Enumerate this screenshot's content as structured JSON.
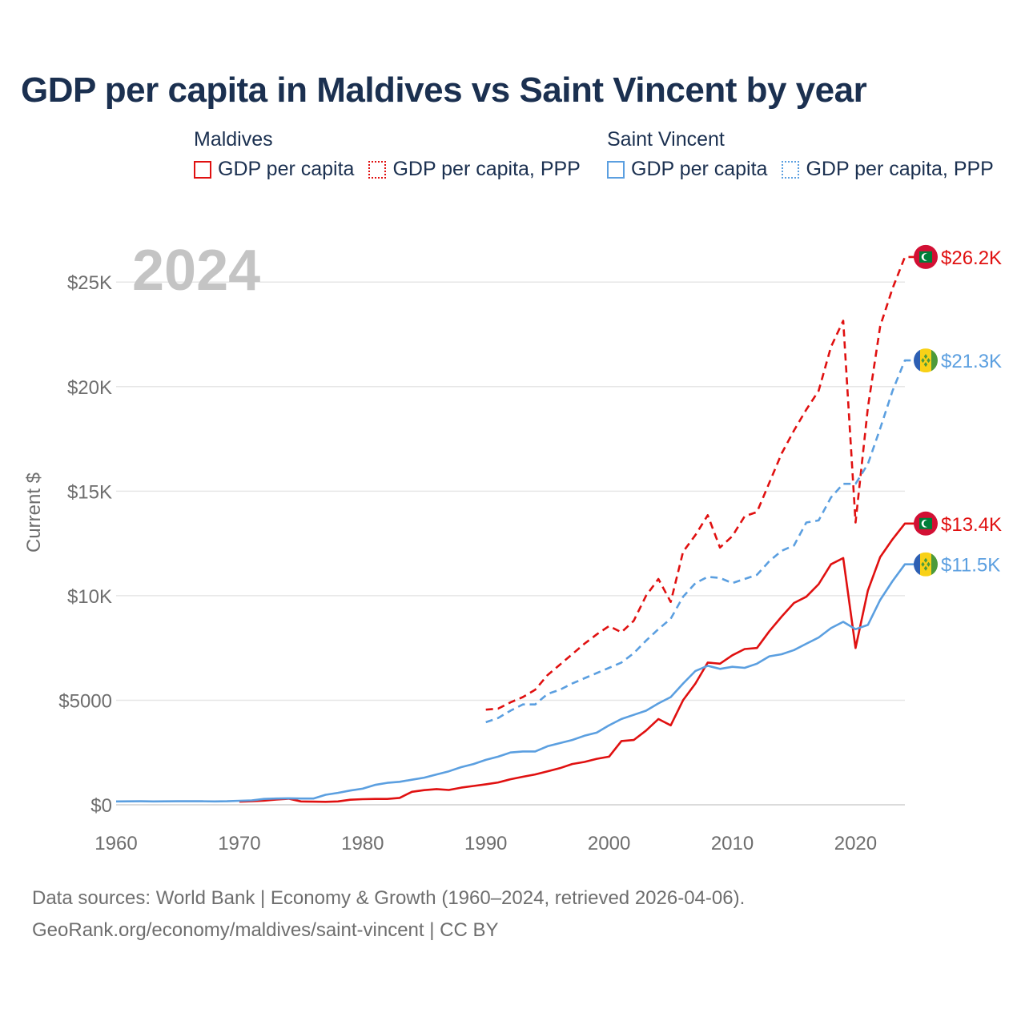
{
  "title": "GDP per capita in Maldives vs Saint Vincent by year",
  "legend": {
    "groups": [
      {
        "heading": "Maldives",
        "items": [
          "GDP per capita",
          "GDP per capita, PPP"
        ]
      },
      {
        "heading": "Saint Vincent",
        "items": [
          "GDP per capita",
          "GDP per capita, PPP"
        ]
      }
    ]
  },
  "colors": {
    "maldives": "#e01010",
    "saint_vincent": "#5b9fe0",
    "grid": "#e6e6e6",
    "axis_text": "#6e6e6e",
    "watermark": "#c4c4c4"
  },
  "footer": {
    "line1": "Data sources: World Bank | Economy & Growth (1960–2024, retrieved 2026-04-06).",
    "line2": "GeoRank.org/economy/maldives/saint-vincent | CC BY"
  },
  "chart_data": {
    "type": "line",
    "title": "GDP per capita in Maldives vs Saint Vincent by year",
    "year_label": "2024",
    "xlabel": "",
    "ylabel": "Current $",
    "xlim": [
      1960,
      2024
    ],
    "ylim": [
      0,
      27000
    ],
    "x_ticks": [
      1960,
      1970,
      1980,
      1990,
      2000,
      2010,
      2020
    ],
    "x_tick_labels": [
      "1960",
      "1970",
      "1980",
      "1990",
      "2000",
      "2010",
      "2020"
    ],
    "y_ticks": [
      0,
      5000,
      10000,
      15000,
      20000,
      25000
    ],
    "y_tick_labels": [
      "$0",
      "$5000",
      "$10K",
      "$15K",
      "$20K",
      "$25K"
    ],
    "grid": true,
    "series": [
      {
        "name": "Maldives GDP per capita",
        "country": "Maldives",
        "color": "#e01010",
        "style": "solid",
        "end_label": "$13.4K",
        "x": [
          1970,
          1971,
          1972,
          1973,
          1974,
          1975,
          1976,
          1977,
          1978,
          1979,
          1980,
          1981,
          1982,
          1983,
          1984,
          1985,
          1986,
          1987,
          1988,
          1989,
          1990,
          1991,
          1992,
          1993,
          1994,
          1995,
          1996,
          1997,
          1998,
          1999,
          2000,
          2001,
          2002,
          2003,
          2004,
          2005,
          2006,
          2007,
          2008,
          2009,
          2010,
          2011,
          2012,
          2013,
          2014,
          2015,
          2016,
          2017,
          2018,
          2019,
          2020,
          2021,
          2022,
          2023,
          2024
        ],
        "y": [
          150,
          170,
          200,
          250,
          290,
          160,
          150,
          140,
          160,
          240,
          270,
          280,
          280,
          330,
          620,
          700,
          750,
          710,
          820,
          900,
          980,
          1070,
          1220,
          1340,
          1450,
          1600,
          1750,
          1950,
          2050,
          2200,
          2300,
          3050,
          3100,
          3550,
          4100,
          3800,
          5000,
          5800,
          6800,
          6750,
          7150,
          7450,
          7500,
          8300,
          9000,
          9650,
          9950,
          10550,
          11500,
          11800,
          7500,
          10250,
          11850,
          12700,
          13450
        ]
      },
      {
        "name": "Maldives GDP per capita, PPP",
        "country": "Maldives",
        "color": "#e01010",
        "style": "dashed",
        "end_label": "$26.2K",
        "x": [
          1990,
          1991,
          1992,
          1993,
          1994,
          1995,
          1996,
          1997,
          1998,
          1999,
          2000,
          2001,
          2002,
          2003,
          2004,
          2005,
          2006,
          2007,
          2008,
          2009,
          2010,
          2011,
          2012,
          2013,
          2014,
          2015,
          2016,
          2017,
          2018,
          2019,
          2020,
          2021,
          2022,
          2023,
          2024
        ],
        "y": [
          4550,
          4600,
          4900,
          5150,
          5500,
          6200,
          6700,
          7200,
          7700,
          8150,
          8550,
          8250,
          8800,
          10000,
          10800,
          9700,
          12100,
          12900,
          13850,
          12300,
          12850,
          13800,
          14000,
          15400,
          16800,
          17900,
          18900,
          19800,
          21900,
          23150,
          13500,
          19000,
          22900,
          24700,
          26200
        ]
      },
      {
        "name": "Saint Vincent GDP per capita",
        "country": "Saint Vincent",
        "color": "#5b9fe0",
        "style": "solid",
        "end_label": "$11.5K",
        "x": [
          1960,
          1961,
          1962,
          1963,
          1964,
          1965,
          1966,
          1967,
          1968,
          1969,
          1970,
          1971,
          1972,
          1973,
          1974,
          1975,
          1976,
          1977,
          1978,
          1979,
          1980,
          1981,
          1982,
          1983,
          1984,
          1985,
          1986,
          1987,
          1988,
          1989,
          1990,
          1991,
          1992,
          1993,
          1994,
          1995,
          1996,
          1997,
          1998,
          1999,
          2000,
          2001,
          2002,
          2003,
          2004,
          2005,
          2006,
          2007,
          2008,
          2009,
          2010,
          2011,
          2012,
          2013,
          2014,
          2015,
          2016,
          2017,
          2018,
          2019,
          2020,
          2021,
          2022,
          2023,
          2024
        ],
        "y": [
          160,
          165,
          170,
          160,
          165,
          170,
          170,
          170,
          160,
          170,
          190,
          210,
          280,
          300,
          310,
          300,
          300,
          480,
          570,
          680,
          770,
          950,
          1050,
          1100,
          1200,
          1300,
          1450,
          1600,
          1800,
          1950,
          2150,
          2300,
          2500,
          2550,
          2550,
          2800,
          2950,
          3100,
          3300,
          3450,
          3800,
          4100,
          4300,
          4500,
          4850,
          5150,
          5800,
          6400,
          6650,
          6500,
          6600,
          6550,
          6750,
          7100,
          7200,
          7400,
          7700,
          8000,
          8450,
          8750,
          8400,
          8600,
          9800,
          10700,
          11500
        ]
      },
      {
        "name": "Saint Vincent GDP per capita, PPP",
        "country": "Saint Vincent",
        "color": "#5b9fe0",
        "style": "dashed",
        "end_label": "$21.3K",
        "x": [
          1990,
          1991,
          1992,
          1993,
          1994,
          1995,
          1996,
          1997,
          1998,
          1999,
          2000,
          2001,
          2002,
          2003,
          2004,
          2005,
          2006,
          2007,
          2008,
          2009,
          2010,
          2011,
          2012,
          2013,
          2014,
          2015,
          2016,
          2017,
          2018,
          2019,
          2020,
          2021,
          2022,
          2023,
          2024
        ],
        "y": [
          3950,
          4150,
          4500,
          4800,
          4800,
          5300,
          5500,
          5800,
          6050,
          6300,
          6550,
          6800,
          7250,
          7850,
          8400,
          8900,
          9950,
          10600,
          10900,
          10850,
          10600,
          10800,
          11000,
          11650,
          12150,
          12400,
          13500,
          13600,
          14700,
          15350,
          15350,
          16300,
          18000,
          19800,
          21250
        ]
      }
    ]
  }
}
